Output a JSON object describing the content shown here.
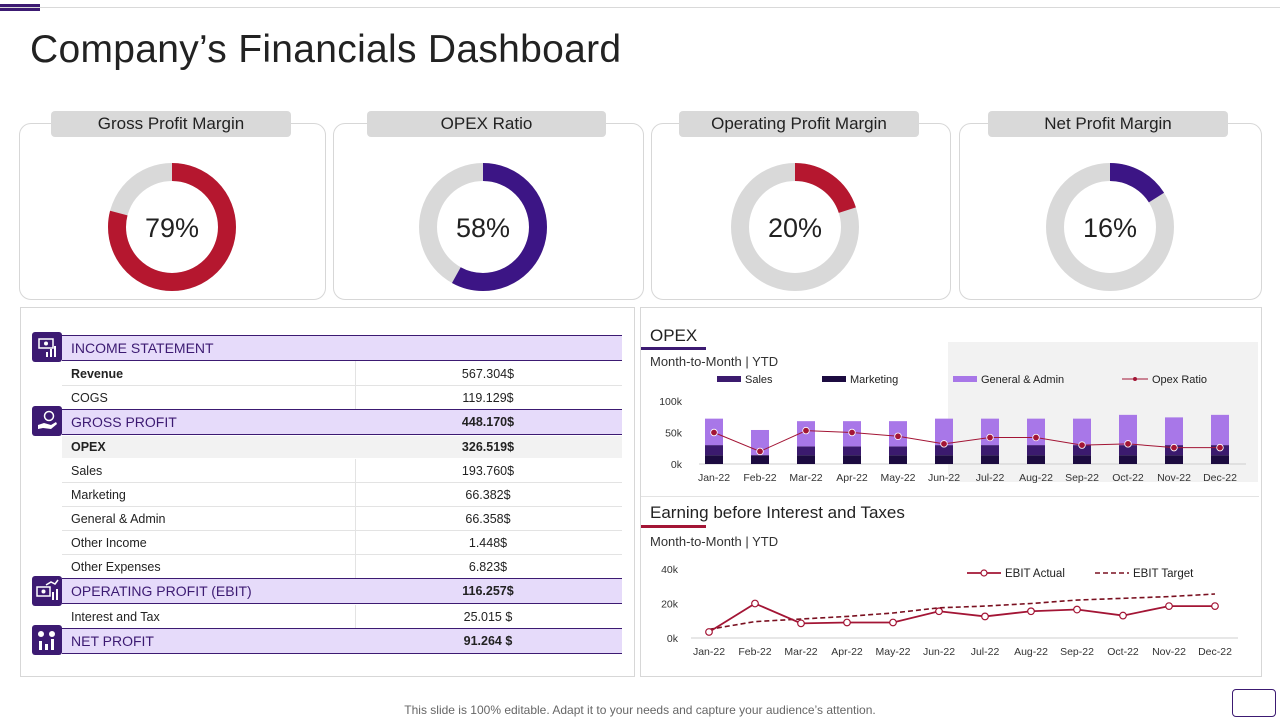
{
  "title": "Company’s Financials Dashboard",
  "kpis": [
    {
      "label": "Gross  Profit Margin",
      "value_text": "79%",
      "value": 0.79,
      "color": "#b5172f"
    },
    {
      "label": "OPEX Ratio",
      "value_text": "58%",
      "value": 0.58,
      "color": "#3c1585"
    },
    {
      "label": "Operating Profit Margin",
      "value_text": "20%",
      "value": 0.2,
      "color": "#b5172f"
    },
    {
      "label": "Net Profit Margin",
      "value_text": "16%",
      "value": 0.16,
      "color": "#3c1585"
    }
  ],
  "income": {
    "sections": [
      {
        "title": "INCOME  STATEMENT",
        "value": "",
        "icon": "money-chart-icon"
      },
      {
        "title": "GROSS PROFIT",
        "value": "448.170$",
        "icon": "hand-coin-icon"
      },
      {
        "title": "OPERATING  PROFIT (EBIT)",
        "value": "116.257$",
        "icon": "money-chart-icon"
      },
      {
        "title": "NET PROFIT",
        "value": "91.264 $",
        "icon": "coins-chart-icon"
      }
    ],
    "rows": [
      {
        "label": "Revenue",
        "value": "567.304$",
        "bold": true
      },
      {
        "label": "COGS",
        "value": "119.129$",
        "bold": false
      },
      {
        "label": "OPEX",
        "value": "326.519$",
        "bold": true
      },
      {
        "label": "Sales",
        "value": "193.760$",
        "bold": false
      },
      {
        "label": "Marketing",
        "value": "66.382$",
        "bold": false
      },
      {
        "label": "General & Admin",
        "value": "66.358$",
        "bold": false
      },
      {
        "label": "Other Income",
        "value": "1.448$",
        "bold": false
      },
      {
        "label": "Other Expenses",
        "value": "6.823$",
        "bold": false
      },
      {
        "label": "Interest and Tax",
        "value": "25.015 $",
        "bold": false
      }
    ]
  },
  "opex_panel": {
    "title": "OPEX",
    "subtitle": "Month-to-Month  | YTD"
  },
  "ebit_panel": {
    "title": "Earning before Interest  and Taxes",
    "subtitle": "Month-to-Month  | YTD"
  },
  "footer": "This slide is 100% editable. Adapt it to your needs and capture your audience’s attention.",
  "chart_data": [
    {
      "type": "bar",
      "categories": [
        "Jan-22",
        "Feb-22",
        "Mar-22",
        "Apr-22",
        "May-22",
        "Jun-22",
        "Jul-22",
        "Aug-22",
        "Sep-22",
        "Oct-22",
        "Nov-22",
        "Dec-22"
      ],
      "series": [
        {
          "name": "Sales",
          "values": [
            16,
            0,
            14,
            14,
            14,
            16,
            16,
            16,
            16,
            16,
            16,
            16
          ],
          "color": "#3b1a6e"
        },
        {
          "name": "Marketing",
          "values": [
            14,
            14,
            14,
            14,
            14,
            14,
            14,
            14,
            14,
            14,
            14,
            14
          ],
          "color": "#1c0b40"
        },
        {
          "name": "General & Admin",
          "values": [
            42,
            40,
            40,
            40,
            40,
            42,
            42,
            42,
            42,
            48,
            44,
            48
          ],
          "color": "#a877e8"
        },
        {
          "name": "Opex Ratio",
          "values": [
            50,
            20,
            53,
            50,
            44,
            32,
            42,
            42,
            30,
            32,
            26,
            26
          ],
          "color": "#a31535",
          "style": "line-markers"
        }
      ],
      "ylim": [
        0,
        100000
      ],
      "ytick_labels": [
        "0k",
        "50k",
        "100k"
      ],
      "legend": "top"
    },
    {
      "type": "line",
      "categories": [
        "Jan-22",
        "Feb-22",
        "Mar-22",
        "Apr-22",
        "May-22",
        "Jun-22",
        "Jul-22",
        "Aug-22",
        "Sep-22",
        "Oct-22",
        "Nov-22",
        "Dec-22"
      ],
      "series": [
        {
          "name": "EBIT Actual",
          "values": [
            3500,
            20000,
            8500,
            9000,
            9000,
            15500,
            12500,
            15500,
            16500,
            13000,
            18500,
            18500
          ],
          "color": "#a31535"
        },
        {
          "name": "EBIT Target",
          "values": [
            5000,
            9500,
            11000,
            12500,
            14500,
            17500,
            18500,
            20000,
            22000,
            23000,
            24000,
            25500
          ],
          "color": "#7a1020",
          "dashed": true
        }
      ],
      "ylim": [
        0,
        40000
      ],
      "ytick_labels": [
        "0k",
        "20k",
        "40k"
      ],
      "legend": "top-right"
    }
  ]
}
